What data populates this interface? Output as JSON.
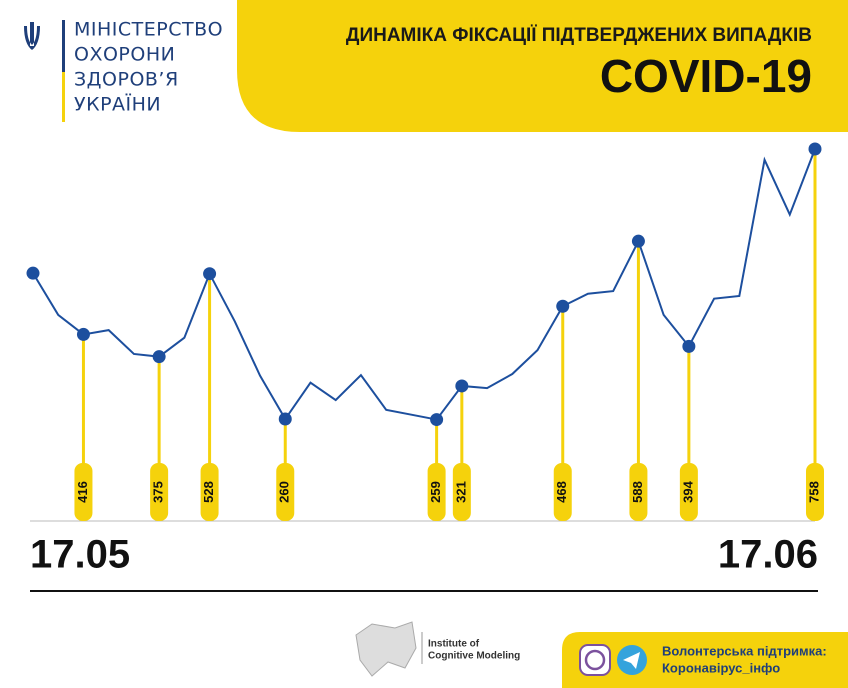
{
  "header": {
    "ministry": [
      "МІНІСТЕРСТВО",
      "ОХОРОНИ",
      "ЗДОРОВ’Я",
      "УКРАЇНИ"
    ]
  },
  "chart_data": {
    "type": "line",
    "title": "ДИНАМІКА ФІКСАЦІЇ ПІДТВЕРДЖЕНИХ ВИПАДКІВ",
    "subtitle": "COVID-19",
    "categories": [
      "17.05",
      null,
      null,
      null,
      null,
      null,
      null,
      null,
      null,
      null,
      null,
      null,
      null,
      null,
      null,
      null,
      null,
      null,
      null,
      null,
      null,
      null,
      null,
      null,
      null,
      null,
      null,
      null,
      null,
      null,
      null,
      "17.06"
    ],
    "values": [
      529,
      452,
      416,
      424,
      380,
      375,
      410,
      528,
      440,
      340,
      260,
      327,
      295,
      341,
      277,
      268,
      259,
      321,
      317,
      343,
      387,
      468,
      491,
      496,
      588,
      452,
      394,
      482,
      487,
      738,
      637,
      758
    ],
    "value_labels": [
      null,
      null,
      "416",
      null,
      null,
      "375",
      null,
      "528",
      null,
      null,
      "260",
      null,
      null,
      null,
      null,
      null,
      "259",
      "321",
      null,
      null,
      null,
      "468",
      null,
      null,
      "588",
      null,
      "394",
      null,
      null,
      null,
      null,
      "758"
    ],
    "color": "#1d4f9e",
    "label_color": "#f5d20c",
    "ylim": [
      0,
      900
    ]
  },
  "footer": {
    "institute": [
      "Institute of",
      "Cognitive Modeling"
    ],
    "support": [
      "Волонтерська підтримка:",
      "Коронавірус_інфо"
    ]
  }
}
